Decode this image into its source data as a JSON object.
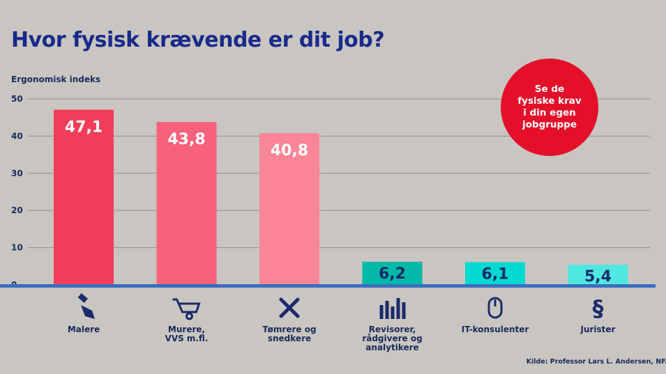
{
  "title": "Hvor fysisk krævende er dit job?",
  "badge": {
    "text": "Se de\nfysiske krav\ni din egen\njobgruppe"
  },
  "source": "Kilde: Professor Lars L. Andersen, NFA",
  "colors": {
    "title": "#1a2a8a",
    "badge": "#e4102a",
    "axis": "#3a6fc0",
    "bars": [
      "#f23d5a",
      "#f7627a",
      "#fa8596",
      "#00b9a8",
      "#00d9d0",
      "#4fe8e0"
    ]
  },
  "chart_data": {
    "type": "bar",
    "ylabel": "Ergonomisk indeks",
    "ylim": [
      0,
      50
    ],
    "yticks": [
      0,
      10,
      20,
      30,
      40,
      50
    ],
    "grid": true,
    "categories": [
      "Malere",
      "Murere,\nVVS m.fl.",
      "Tømrere og\nsnedkere",
      "Revisorer,\nrådgivere og\nanalytikere",
      "IT-konsulenter",
      "Jurister"
    ],
    "values": [
      47.1,
      43.8,
      40.8,
      6.2,
      6.1,
      5.4
    ],
    "value_labels": [
      "47,1",
      "43,8",
      "40,8",
      "6,2",
      "6,1",
      "5,4"
    ],
    "icons": [
      "paintbrush-icon",
      "wheelbarrow-icon",
      "tools-icon",
      "analytics-report-icon",
      "computer-mouse-icon",
      "paragraph-icon"
    ]
  }
}
